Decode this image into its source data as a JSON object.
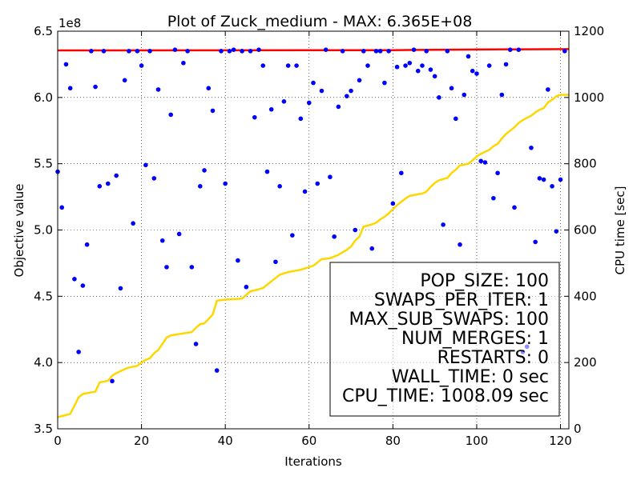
{
  "chart_data": {
    "type": "scatter",
    "title": "Plot of Zuck_medium - MAX: 6.365E+08",
    "xlabel": "Iterations",
    "ylabel": "Objective value",
    "y2label": "CPU time [sec]",
    "y_exponent_label": "1e8",
    "xlim": [
      0,
      122
    ],
    "ylim": [
      3.5,
      6.5
    ],
    "y2lim": [
      0,
      1200
    ],
    "grid": true,
    "x_ticks": [
      "0",
      "20",
      "40",
      "60",
      "80",
      "100",
      "120"
    ],
    "y_ticks": [
      "3.5",
      "4.0",
      "4.5",
      "5.0",
      "5.5",
      "6.0",
      "6.5"
    ],
    "y2_ticks": [
      "0",
      "200",
      "400",
      "600",
      "800",
      "1000",
      "1200"
    ],
    "series": [
      {
        "role": "objective values per iteration",
        "style": "scatter",
        "color": "#0000ff",
        "points": [
          [
            0,
            5.44
          ],
          [
            1,
            5.17
          ],
          [
            2,
            6.25
          ],
          [
            3,
            6.07
          ],
          [
            4,
            4.63
          ],
          [
            5,
            4.08
          ],
          [
            6,
            4.58
          ],
          [
            7,
            4.89
          ],
          [
            8,
            6.35
          ],
          [
            9,
            6.08
          ],
          [
            10,
            5.33
          ],
          [
            11,
            6.35
          ],
          [
            12,
            5.35
          ],
          [
            13,
            3.86
          ],
          [
            14,
            5.41
          ],
          [
            15,
            4.56
          ],
          [
            16,
            6.13
          ],
          [
            17,
            6.35
          ],
          [
            18,
            5.05
          ],
          [
            19,
            6.35
          ],
          [
            20,
            6.24
          ],
          [
            21,
            5.49
          ],
          [
            22,
            6.35
          ],
          [
            23,
            5.39
          ],
          [
            24,
            6.06
          ],
          [
            25,
            4.92
          ],
          [
            26,
            4.72
          ],
          [
            27,
            5.87
          ],
          [
            28,
            6.36
          ],
          [
            29,
            4.97
          ],
          [
            30,
            6.26
          ],
          [
            31,
            6.35
          ],
          [
            32,
            4.72
          ],
          [
            33,
            4.14
          ],
          [
            34,
            5.33
          ],
          [
            35,
            5.45
          ],
          [
            36,
            6.07
          ],
          [
            37,
            5.9
          ],
          [
            38,
            3.94
          ],
          [
            39,
            6.35
          ],
          [
            40,
            5.35
          ],
          [
            41,
            6.35
          ],
          [
            42,
            6.36
          ],
          [
            43,
            4.77
          ],
          [
            44,
            6.35
          ],
          [
            45,
            4.57
          ],
          [
            46,
            6.35
          ],
          [
            47,
            5.85
          ],
          [
            48,
            6.36
          ],
          [
            49,
            6.24
          ],
          [
            50,
            5.44
          ],
          [
            51,
            5.91
          ],
          [
            52,
            4.76
          ],
          [
            53,
            5.33
          ],
          [
            54,
            5.97
          ],
          [
            55,
            6.24
          ],
          [
            56,
            4.96
          ],
          [
            57,
            6.24
          ],
          [
            58,
            5.84
          ],
          [
            59,
            5.29
          ],
          [
            60,
            5.96
          ],
          [
            61,
            6.11
          ],
          [
            62,
            5.35
          ],
          [
            63,
            6.05
          ],
          [
            64,
            6.36
          ],
          [
            65,
            5.4
          ],
          [
            66,
            4.95
          ],
          [
            67,
            5.93
          ],
          [
            68,
            6.35
          ],
          [
            69,
            6.01
          ],
          [
            70,
            6.05
          ],
          [
            71,
            5.0
          ],
          [
            72,
            6.13
          ],
          [
            73,
            6.35
          ],
          [
            74,
            6.24
          ],
          [
            75,
            4.86
          ],
          [
            76,
            6.35
          ],
          [
            77,
            6.35
          ],
          [
            78,
            6.11
          ],
          [
            79,
            6.35
          ],
          [
            80,
            5.2
          ],
          [
            81,
            6.23
          ],
          [
            82,
            5.43
          ],
          [
            83,
            6.24
          ],
          [
            84,
            6.26
          ],
          [
            85,
            6.36
          ],
          [
            86,
            6.2
          ],
          [
            87,
            6.24
          ],
          [
            88,
            6.35
          ],
          [
            89,
            6.21
          ],
          [
            90,
            6.16
          ],
          [
            91,
            6.0
          ],
          [
            92,
            5.04
          ],
          [
            93,
            6.35
          ],
          [
            94,
            6.07
          ],
          [
            95,
            5.84
          ],
          [
            96,
            4.89
          ],
          [
            97,
            6.02
          ],
          [
            98,
            6.31
          ],
          [
            99,
            6.2
          ],
          [
            100,
            6.18
          ],
          [
            101,
            5.52
          ],
          [
            102,
            5.51
          ],
          [
            103,
            6.24
          ],
          [
            104,
            5.24
          ],
          [
            105,
            5.43
          ],
          [
            106,
            6.02
          ],
          [
            107,
            6.25
          ],
          [
            108,
            6.36
          ],
          [
            109,
            5.17
          ],
          [
            110,
            6.36
          ],
          [
            111,
            4.08
          ],
          [
            112,
            4.12
          ],
          [
            113,
            5.62
          ],
          [
            114,
            4.91
          ],
          [
            115,
            5.39
          ],
          [
            116,
            5.38
          ],
          [
            117,
            6.06
          ],
          [
            118,
            5.33
          ],
          [
            119,
            4.99
          ],
          [
            120,
            5.38
          ],
          [
            121,
            6.35
          ]
        ]
      },
      {
        "role": "best objective so far",
        "style": "line",
        "color": "#ff0000",
        "points": [
          [
            0,
            6.355
          ],
          [
            40,
            6.356
          ],
          [
            80,
            6.357
          ],
          [
            100,
            6.362
          ],
          [
            122,
            6.365
          ]
        ]
      },
      {
        "role": "CPU time (right axis)",
        "style": "line",
        "axis": "y2",
        "color": "#ffd700",
        "points": [
          [
            0,
            35
          ],
          [
            3,
            45
          ],
          [
            4,
            70
          ],
          [
            5,
            95
          ],
          [
            6,
            105
          ],
          [
            8,
            110
          ],
          [
            9,
            112
          ],
          [
            10,
            140
          ],
          [
            12,
            145
          ],
          [
            13,
            160
          ],
          [
            14,
            168
          ],
          [
            16,
            180
          ],
          [
            17,
            185
          ],
          [
            19,
            190
          ],
          [
            20,
            200
          ],
          [
            21,
            208
          ],
          [
            22,
            213
          ],
          [
            23,
            228
          ],
          [
            24,
            238
          ],
          [
            26,
            275
          ],
          [
            27,
            282
          ],
          [
            28,
            284
          ],
          [
            29,
            286
          ],
          [
            30,
            288
          ],
          [
            31,
            290
          ],
          [
            32,
            292
          ],
          [
            33,
            305
          ],
          [
            34,
            316
          ],
          [
            35,
            318
          ],
          [
            37,
            345
          ],
          [
            38,
            387
          ],
          [
            40,
            390
          ],
          [
            44,
            393
          ],
          [
            46,
            415
          ],
          [
            47,
            418
          ],
          [
            48,
            421
          ],
          [
            49,
            425
          ],
          [
            51,
            445
          ],
          [
            52,
            455
          ],
          [
            53,
            465
          ],
          [
            55,
            473
          ],
          [
            58,
            480
          ],
          [
            61,
            492
          ],
          [
            63,
            512
          ],
          [
            65,
            515
          ],
          [
            67,
            525
          ],
          [
            68,
            533
          ],
          [
            69,
            540
          ],
          [
            70,
            550
          ],
          [
            71,
            568
          ],
          [
            72,
            580
          ],
          [
            73,
            610
          ],
          [
            75,
            617
          ],
          [
            76,
            622
          ],
          [
            77,
            632
          ],
          [
            78,
            640
          ],
          [
            79,
            650
          ],
          [
            80,
            663
          ],
          [
            81,
            675
          ],
          [
            83,
            695
          ],
          [
            84,
            703
          ],
          [
            86,
            708
          ],
          [
            87,
            710
          ],
          [
            88,
            716
          ],
          [
            89,
            730
          ],
          [
            90,
            742
          ],
          [
            91,
            750
          ],
          [
            93,
            757
          ],
          [
            94,
            772
          ],
          [
            95,
            782
          ],
          [
            96,
            795
          ],
          [
            97,
            797
          ],
          [
            98,
            800
          ],
          [
            99,
            810
          ],
          [
            100,
            822
          ],
          [
            101,
            830
          ],
          [
            103,
            842
          ],
          [
            104,
            853
          ],
          [
            105,
            860
          ],
          [
            106,
            876
          ],
          [
            107,
            890
          ],
          [
            109,
            910
          ],
          [
            110,
            923
          ],
          [
            111,
            932
          ],
          [
            113,
            945
          ],
          [
            114,
            955
          ],
          [
            115,
            963
          ],
          [
            116,
            968
          ],
          [
            117,
            985
          ],
          [
            118,
            993
          ],
          [
            119,
            1004
          ],
          [
            120,
            1008
          ],
          [
            122,
            1008
          ]
        ]
      }
    ],
    "legend": {
      "placement": "lower-right",
      "lines": [
        "POP_SIZE: 100",
        "SWAPS_PER_ITER: 1",
        "MAX_SUB_SWAPS: 100",
        "NUM_MERGES: 1",
        "RESTARTS: 0",
        "WALL_TIME: 0 sec",
        "CPU_TIME: 1008.09 sec"
      ]
    }
  }
}
